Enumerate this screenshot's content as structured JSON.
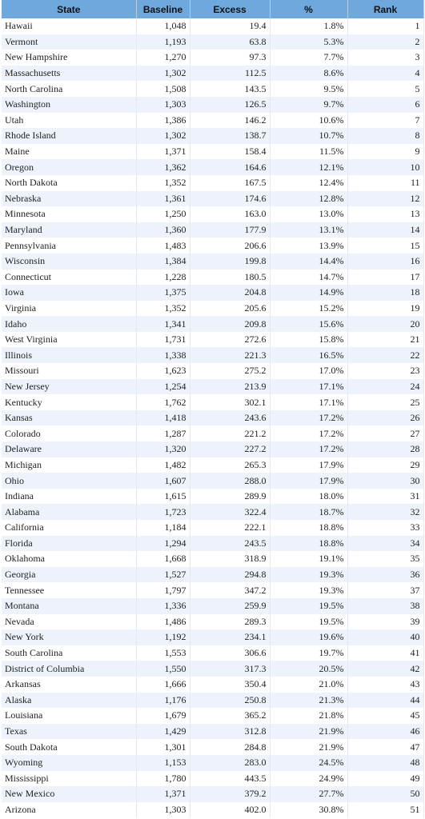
{
  "table": {
    "header": [
      "State",
      "Baseline",
      "Excess",
      "%",
      "Rank"
    ],
    "rows": [
      [
        "Hawaii",
        "1,048",
        "19.4",
        "1.8%",
        1
      ],
      [
        "Vermont",
        "1,193",
        "63.8",
        "5.3%",
        2
      ],
      [
        "New Hampshire",
        "1,270",
        "97.3",
        "7.7%",
        3
      ],
      [
        "Massachusetts",
        "1,302",
        "112.5",
        "8.6%",
        4
      ],
      [
        "North Carolina",
        "1,508",
        "143.5",
        "9.5%",
        5
      ],
      [
        "Washington",
        "1,303",
        "126.5",
        "9.7%",
        6
      ],
      [
        "Utah",
        "1,386",
        "146.2",
        "10.6%",
        7
      ],
      [
        "Rhode Island",
        "1,302",
        "138.7",
        "10.7%",
        8
      ],
      [
        "Maine",
        "1,371",
        "158.4",
        "11.5%",
        9
      ],
      [
        "Oregon",
        "1,362",
        "164.6",
        "12.1%",
        10
      ],
      [
        "North Dakota",
        "1,352",
        "167.5",
        "12.4%",
        11
      ],
      [
        "Nebraska",
        "1,361",
        "174.6",
        "12.8%",
        12
      ],
      [
        "Minnesota",
        "1,250",
        "163.0",
        "13.0%",
        13
      ],
      [
        "Maryland",
        "1,360",
        "177.9",
        "13.1%",
        14
      ],
      [
        "Pennsylvania",
        "1,483",
        "206.6",
        "13.9%",
        15
      ],
      [
        "Wisconsin",
        "1,384",
        "199.8",
        "14.4%",
        16
      ],
      [
        "Connecticut",
        "1,228",
        "180.5",
        "14.7%",
        17
      ],
      [
        "Iowa",
        "1,375",
        "204.8",
        "14.9%",
        18
      ],
      [
        "Virginia",
        "1,352",
        "205.6",
        "15.2%",
        19
      ],
      [
        "Idaho",
        "1,341",
        "209.8",
        "15.6%",
        20
      ],
      [
        "West Virginia",
        "1,731",
        "272.6",
        "15.8%",
        21
      ],
      [
        "Illinois",
        "1,338",
        "221.3",
        "16.5%",
        22
      ],
      [
        "Missouri",
        "1,623",
        "275.2",
        "17.0%",
        23
      ],
      [
        "New Jersey",
        "1,254",
        "213.9",
        "17.1%",
        24
      ],
      [
        "Kentucky",
        "1,762",
        "302.1",
        "17.1%",
        25
      ],
      [
        "Kansas",
        "1,418",
        "243.6",
        "17.2%",
        26
      ],
      [
        "Colorado",
        "1,287",
        "221.2",
        "17.2%",
        27
      ],
      [
        "Delaware",
        "1,320",
        "227.2",
        "17.2%",
        28
      ],
      [
        "Michigan",
        "1,482",
        "265.3",
        "17.9%",
        29
      ],
      [
        "Ohio",
        "1,607",
        "288.0",
        "17.9%",
        30
      ],
      [
        "Indiana",
        "1,615",
        "289.9",
        "18.0%",
        31
      ],
      [
        "Alabama",
        "1,723",
        "322.4",
        "18.7%",
        32
      ],
      [
        "California",
        "1,184",
        "222.1",
        "18.8%",
        33
      ],
      [
        "Florida",
        "1,294",
        "243.5",
        "18.8%",
        34
      ],
      [
        "Oklahoma",
        "1,668",
        "318.9",
        "19.1%",
        35
      ],
      [
        "Georgia",
        "1,527",
        "294.8",
        "19.3%",
        36
      ],
      [
        "Tennessee",
        "1,797",
        "347.2",
        "19.3%",
        37
      ],
      [
        "Montana",
        "1,336",
        "259.9",
        "19.5%",
        38
      ],
      [
        "Nevada",
        "1,486",
        "289.3",
        "19.5%",
        39
      ],
      [
        "New York",
        "1,192",
        "234.1",
        "19.6%",
        40
      ],
      [
        "South Carolina",
        "1,553",
        "306.6",
        "19.7%",
        41
      ],
      [
        "District of Columbia",
        "1,550",
        "317.3",
        "20.5%",
        42
      ],
      [
        "Arkansas",
        "1,666",
        "350.4",
        "21.0%",
        43
      ],
      [
        "Alaska",
        "1,176",
        "250.8",
        "21.3%",
        44
      ],
      [
        "Louisiana",
        "1,679",
        "365.2",
        "21.8%",
        45
      ],
      [
        "Texas",
        "1,429",
        "312.8",
        "21.9%",
        46
      ],
      [
        "South Dakota",
        "1,301",
        "284.8",
        "21.9%",
        47
      ],
      [
        "Wyoming",
        "1,153",
        "283.0",
        "24.5%",
        48
      ],
      [
        "Mississippi",
        "1,780",
        "443.5",
        "24.9%",
        49
      ],
      [
        "New Mexico",
        "1,371",
        "379.2",
        "27.7%",
        50
      ],
      [
        "Arizona",
        "1,303",
        "402.0",
        "30.8%",
        51
      ]
    ]
  }
}
